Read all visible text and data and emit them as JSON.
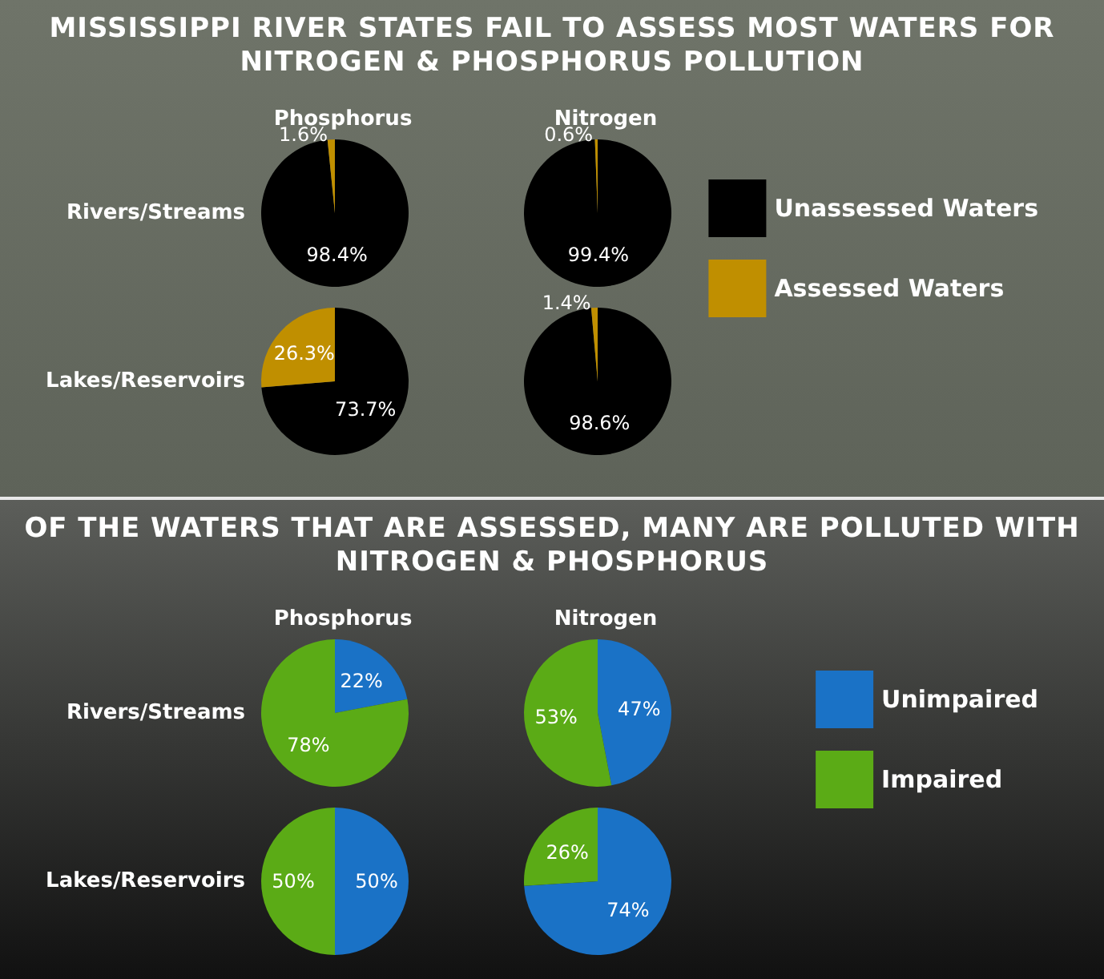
{
  "chart_data": [
    {
      "type": "other",
      "title": "MISSISSIPPI RIVER STATES FAIL TO ASSESS MOST WATERS FOR NITROGEN & PHOSPHORUS POLLUTION"
    },
    {
      "type": "pie",
      "title": "Phosphorus",
      "ylabel": "Rivers/Streams",
      "categories": [
        "Unassessed Waters",
        "Assessed Waters"
      ],
      "values": [
        98.4,
        1.6
      ],
      "colors": [
        "#000000",
        "#c08f00"
      ],
      "value_labels": [
        "98.4%",
        "1.6%"
      ],
      "legend": "right"
    },
    {
      "type": "pie",
      "title": "Nitrogen",
      "categories": [
        null,
        null
      ],
      "values": [
        99.4,
        0.6
      ],
      "colors": [
        "#000000",
        "#c08f00"
      ],
      "value_labels": [
        "99.4%",
        "0.6%"
      ]
    },
    {
      "type": "pie",
      "ylabel": "Lakes/Reservoirs",
      "categories": [
        null,
        null
      ],
      "values": [
        73.7,
        26.3
      ],
      "colors": [
        "#000000",
        "#c08f00"
      ],
      "value_labels": [
        "73.7%",
        "26.3%"
      ]
    },
    {
      "type": "pie",
      "categories": [
        null,
        null
      ],
      "values": [
        98.6,
        1.4
      ],
      "colors": [
        "#000000",
        "#c08f00"
      ],
      "value_labels": [
        "98.6%",
        "1.4%"
      ]
    },
    {
      "type": "other",
      "title": "OF THE WATERS THAT ARE ASSESSED, MANY ARE POLLUTED WITH NITROGEN & PHOSPHORUS"
    },
    {
      "type": "pie",
      "title": "Phosphorus",
      "ylabel": "Rivers/Streams",
      "categories": [
        "Unimpaired",
        "Impaired"
      ],
      "values": [
        22,
        78
      ],
      "colors": [
        "#1a72c6",
        "#5bab16"
      ],
      "value_labels": [
        "22%",
        "78%"
      ],
      "legend": "right"
    },
    {
      "type": "pie",
      "title": "Nitrogen",
      "categories": [
        null,
        null
      ],
      "values": [
        47,
        53
      ],
      "colors": [
        "#1a72c6",
        "#5bab16"
      ],
      "value_labels": [
        "47%",
        "53%"
      ]
    },
    {
      "type": "pie",
      "ylabel": "Lakes/Reservoirs",
      "categories": [
        null,
        null
      ],
      "values": [
        50,
        50
      ],
      "colors": [
        "#1a72c6",
        "#5bab16"
      ],
      "value_labels": [
        "50%",
        "50%"
      ]
    },
    {
      "type": "pie",
      "categories": [
        null,
        null
      ],
      "values": [
        74,
        26
      ],
      "colors": [
        "#1a72c6",
        "#5bab16"
      ],
      "value_labels": [
        "74%",
        "26%"
      ]
    }
  ]
}
